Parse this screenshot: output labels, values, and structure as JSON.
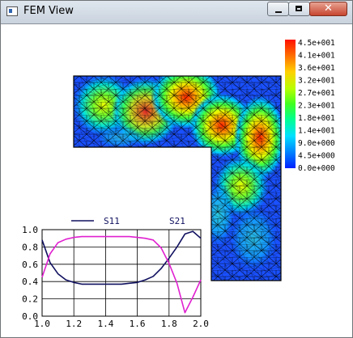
{
  "window": {
    "title": "FEM View",
    "close_glyph": "✕"
  },
  "colorbar": {
    "labels": [
      "4.5e+001",
      "4.1e+001",
      "3.6e+001",
      "3.2e+001",
      "2.7e+001",
      "2.3e+001",
      "1.8e+001",
      "1.4e+001",
      "9.0e+000",
      "4.5e+000",
      "0.0e+000"
    ],
    "gradient": [
      "#ff1000",
      "#ff6a00",
      "#ffd000",
      "#b8ff00",
      "#40ff20",
      "#00ff90",
      "#00e0ff",
      "#0080ff",
      "#0020ff"
    ]
  },
  "field": {
    "low_color": "#1030ff",
    "mesh_color": "#000000"
  },
  "chart_data": {
    "type": "line",
    "x": [
      1.0,
      1.05,
      1.1,
      1.15,
      1.2,
      1.25,
      1.3,
      1.35,
      1.4,
      1.45,
      1.5,
      1.55,
      1.6,
      1.65,
      1.7,
      1.75,
      1.8,
      1.85,
      1.9,
      1.95,
      2.0
    ],
    "series": [
      {
        "name": "S11",
        "color": "#101060",
        "values": [
          0.88,
          0.62,
          0.49,
          0.42,
          0.39,
          0.37,
          0.37,
          0.37,
          0.37,
          0.37,
          0.37,
          0.38,
          0.39,
          0.42,
          0.46,
          0.55,
          0.67,
          0.8,
          0.95,
          0.98,
          0.9
        ]
      },
      {
        "name": "S21",
        "color": "#e020d0",
        "values": [
          0.45,
          0.72,
          0.85,
          0.89,
          0.91,
          0.92,
          0.92,
          0.92,
          0.92,
          0.92,
          0.92,
          0.92,
          0.91,
          0.9,
          0.88,
          0.79,
          0.61,
          0.38,
          0.04,
          0.22,
          0.42
        ]
      }
    ],
    "xlim": [
      1.0,
      2.0
    ],
    "ylim": [
      0.0,
      1.0
    ],
    "xticks": [
      "1.0",
      "1.2",
      "1.4",
      "1.6",
      "1.8",
      "2.0"
    ],
    "yticks": [
      "1.0",
      "0.8",
      "0.6",
      "0.4",
      "0.2",
      "0.0"
    ],
    "grid": true,
    "legend": "top"
  }
}
